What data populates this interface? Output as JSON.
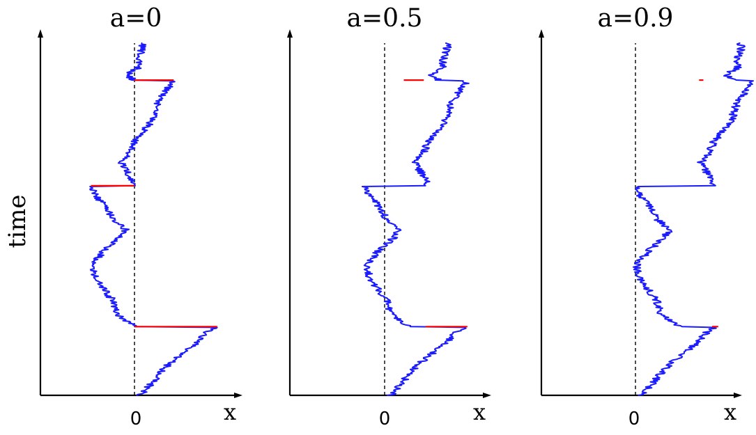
{
  "figure": {
    "y_axis_label": "time",
    "x_axis_label": "x",
    "zero_tick_label": "0"
  },
  "colors": {
    "trajectory": "#1a1aff",
    "jump": "#ff0000",
    "axis": "#000000"
  },
  "panels": [
    {
      "title": "a=0",
      "a": 0,
      "jumps": [
        {
          "t": 0.895,
          "x_from": 0.0,
          "x_to": 0.45
        },
        {
          "t": 0.595,
          "x_from": 0.0,
          "x_to": -0.5
        },
        {
          "t": 0.195,
          "x_from": 0.0,
          "x_to": 0.95
        }
      ]
    },
    {
      "title": "a=0.5",
      "a": 0.5,
      "jumps": [
        {
          "t": 0.895,
          "x_from": 0.22,
          "x_to": 0.45
        },
        {
          "t": 0.195,
          "x_from": 0.47,
          "x_to": 0.95
        }
      ]
    },
    {
      "title": "a=0.9",
      "a": 0.9,
      "jumps": [
        {
          "t": 0.895,
          "x_from": 0.73,
          "x_to": 0.78
        },
        {
          "t": 0.195,
          "x_from": 0.88,
          "x_to": 0.95
        }
      ]
    }
  ]
}
